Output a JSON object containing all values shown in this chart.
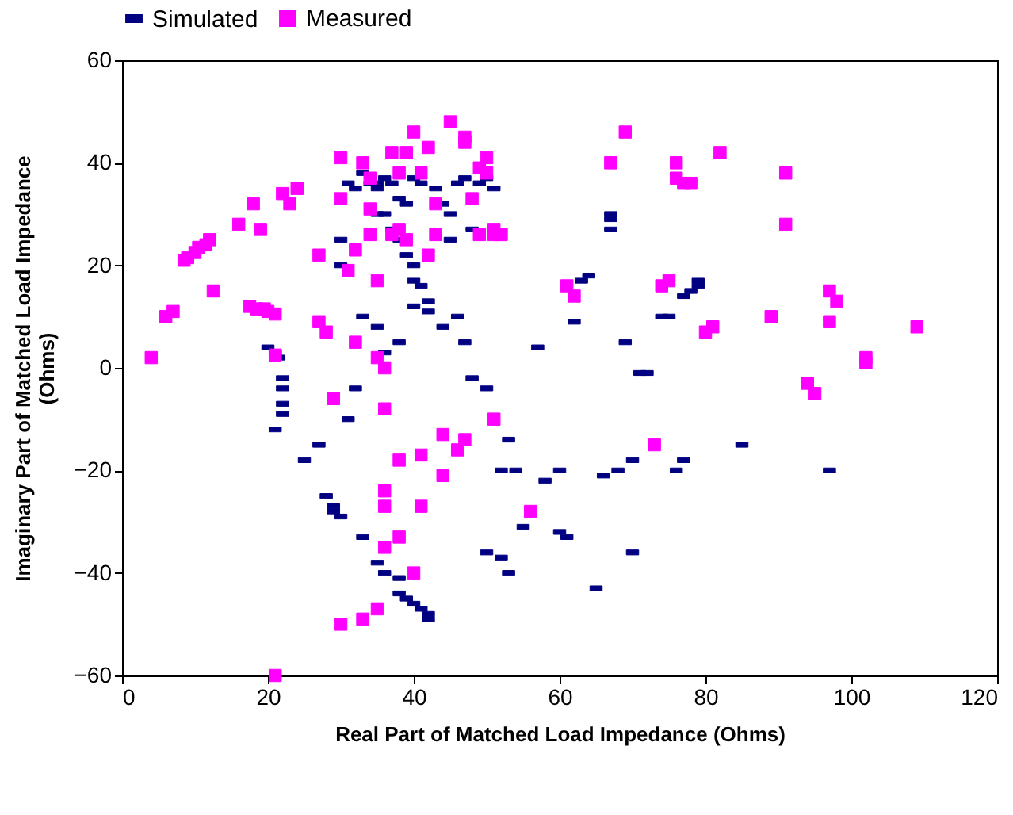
{
  "chart_data": {
    "type": "scatter",
    "xlabel": "Real Part of Matched Load Impedance (Ohms)",
    "ylabel": "Imaginary Part of Matched Load Impedance\n(Ohms)",
    "xlim": [
      0,
      120
    ],
    "xticks": [
      0,
      20,
      40,
      60,
      80,
      100,
      120
    ],
    "ylim": [
      -60,
      60
    ],
    "yticks": [
      -60,
      -40,
      -20,
      0,
      20,
      40,
      60
    ],
    "grid": false,
    "legend": "top",
    "series": [
      {
        "name": "Simulated",
        "color": "#000080",
        "x": [
          20,
          21,
          21.5,
          22,
          22,
          22,
          22,
          21,
          25,
          27,
          28,
          29,
          29,
          30,
          32,
          31,
          33,
          35,
          36,
          38,
          38,
          39,
          40,
          41,
          42,
          42,
          33,
          34,
          35,
          35,
          36,
          37,
          38,
          39,
          40,
          40,
          41,
          42,
          32,
          31,
          30,
          30,
          33,
          35,
          36,
          38,
          40,
          42,
          44,
          46,
          47,
          48,
          50,
          45,
          46,
          47,
          48,
          49,
          50,
          51,
          53,
          54,
          55,
          50,
          52,
          53,
          52,
          57,
          60,
          61,
          62,
          63,
          64,
          65,
          66,
          67,
          67,
          67,
          68,
          69,
          70,
          70,
          71,
          72,
          74,
          75,
          76,
          77,
          78,
          79,
          79,
          77,
          85,
          97,
          45,
          44,
          43,
          41,
          40,
          39,
          38,
          37,
          36,
          35,
          60,
          58
        ],
        "values": [
          4,
          3,
          2,
          -2,
          -4,
          -7,
          -9,
          -12,
          -18,
          -15,
          -25,
          -27,
          -28,
          -29,
          -4,
          -10,
          -33,
          -38,
          -40,
          -41,
          -44,
          -45,
          -46,
          -47,
          -48,
          -49,
          38,
          36,
          35,
          30,
          30,
          27,
          25,
          22,
          20,
          17,
          16,
          13,
          35,
          36,
          25,
          20,
          10,
          8,
          3,
          5,
          12,
          11,
          8,
          10,
          5,
          -2,
          -4,
          30,
          36,
          37,
          27,
          36,
          37,
          35,
          -14,
          -20,
          -31,
          -36,
          -37,
          -40,
          -20,
          4,
          -32,
          -33,
          9,
          17,
          18,
          -43,
          -21,
          27,
          29,
          30,
          -20,
          5,
          -18,
          -36,
          -1,
          -1,
          10,
          10,
          -20,
          14,
          15,
          17,
          16,
          -18,
          -15,
          -20,
          25,
          32,
          35,
          36,
          37,
          32,
          33,
          36,
          37,
          36,
          -20,
          -22
        ]
      },
      {
        "name": "Measured",
        "color": "#ff00ff",
        "marker": "square",
        "x": [
          4,
          6,
          7,
          8.5,
          9,
          10,
          10.5,
          11.5,
          12,
          12.5,
          16,
          18,
          19,
          17.5,
          18.5,
          19.5,
          20,
          21,
          21,
          21,
          22,
          23,
          24,
          27,
          27,
          28,
          29,
          30,
          30,
          30,
          31,
          32,
          32,
          33,
          33,
          34,
          34,
          34,
          35,
          35,
          35,
          36,
          36,
          36,
          36,
          36,
          37,
          37,
          38,
          38,
          38,
          38,
          39,
          39,
          40,
          40,
          41,
          41,
          41,
          42,
          42,
          43,
          43,
          44,
          44,
          45,
          46,
          47,
          47,
          47,
          48,
          49,
          49,
          50,
          50,
          51,
          51,
          51,
          52,
          56,
          61,
          62,
          67,
          69,
          73,
          74,
          75,
          76,
          76,
          77,
          78,
          80,
          81,
          82,
          89,
          91,
          91,
          94,
          95,
          97,
          97,
          98,
          102,
          102,
          109
        ],
        "values": [
          2,
          10,
          11,
          21,
          21.5,
          22.5,
          23.5,
          24,
          25,
          15,
          28,
          32,
          27,
          12,
          11.5,
          11.5,
          11,
          10.5,
          2.5,
          -60,
          34,
          32,
          35,
          9,
          22,
          7,
          -6,
          41,
          33,
          -50,
          19,
          5,
          23,
          40,
          -49,
          37,
          26,
          31,
          -47,
          17,
          2,
          0,
          -24,
          -27,
          -35,
          -8,
          42,
          26,
          -33,
          27,
          38,
          -18,
          25,
          42,
          46,
          -40,
          38,
          -17,
          -27,
          43,
          22,
          32,
          26,
          -21,
          -13,
          48,
          -16,
          -14,
          44,
          45,
          33,
          39,
          26,
          38,
          41,
          26,
          27,
          -10,
          26,
          -28,
          16,
          14,
          40,
          46,
          -15,
          16,
          17,
          40,
          37,
          36,
          36,
          7,
          8,
          42,
          10,
          28,
          38,
          -3,
          -5,
          9,
          15,
          13,
          1,
          2,
          8
        ]
      }
    ]
  }
}
